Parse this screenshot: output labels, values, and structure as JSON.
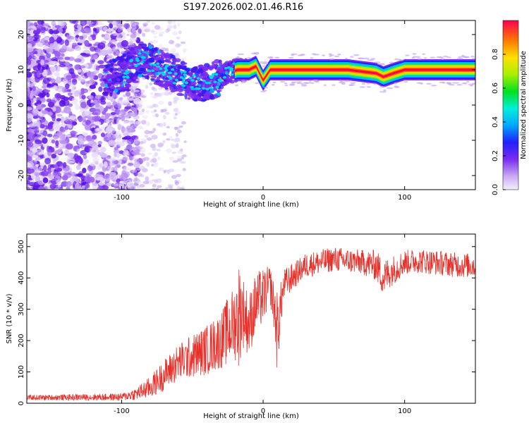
{
  "title": "S197.2026.002.01.46.R16",
  "chart_data": [
    {
      "type": "heatmap",
      "xlabel": "Height of straight line (km)",
      "ylabel": "Frequency (Hz)",
      "xlim": [
        -167,
        150
      ],
      "ylim": [
        -24,
        24
      ],
      "xticks": [
        -100,
        0,
        100
      ],
      "yticks": [
        -20,
        -10,
        0,
        10,
        20
      ],
      "colorbar": {
        "label": "Normalized spectral amplitude",
        "range": [
          0,
          1
        ],
        "ticks": [
          0.0,
          0.2,
          0.4,
          0.6,
          0.8
        ],
        "tick_labels": [
          "0.0",
          "0.2",
          "0.4",
          "0.6",
          "0.8"
        ]
      },
      "ridge_frequency_hz": [
        [
          -105,
          8
        ],
        [
          -95,
          10
        ],
        [
          -85,
          13
        ],
        [
          -75,
          11
        ],
        [
          -65,
          9
        ],
        [
          -55,
          7
        ],
        [
          -45,
          6
        ],
        [
          -35,
          7
        ],
        [
          -25,
          9
        ],
        [
          -18,
          10
        ],
        [
          -10,
          10
        ],
        [
          -5,
          11
        ],
        [
          0,
          7
        ],
        [
          5,
          10
        ],
        [
          20,
          10
        ],
        [
          60,
          10
        ],
        [
          80,
          9
        ],
        [
          85,
          8
        ],
        [
          92,
          9
        ],
        [
          100,
          10
        ],
        [
          150,
          10
        ]
      ]
    },
    {
      "type": "line",
      "xlabel": "Height of straight line (km)",
      "ylabel": "SNR (10 * v/v)",
      "xlim": [
        -167,
        150
      ],
      "ylim": [
        0,
        540
      ],
      "xticks": [
        -100,
        0,
        100
      ],
      "yticks": [
        0,
        100,
        200,
        300,
        400,
        500
      ],
      "line_color": "#e8302a",
      "envelope": {
        "x": [
          -167,
          -100,
          -90,
          -80,
          -70,
          -60,
          -50,
          -40,
          -30,
          -25,
          -20,
          -17,
          -15,
          -10,
          -5,
          0,
          5,
          8,
          10,
          12,
          15,
          20,
          25,
          30,
          40,
          50,
          60,
          70,
          80,
          85,
          90,
          100,
          110,
          120,
          130,
          140,
          150
        ],
        "mean": [
          18,
          20,
          30,
          50,
          90,
          130,
          150,
          170,
          200,
          230,
          260,
          280,
          300,
          250,
          320,
          340,
          380,
          300,
          220,
          300,
          380,
          400,
          420,
          440,
          450,
          460,
          455,
          450,
          440,
          400,
          420,
          450,
          455,
          450,
          445,
          440,
          440
        ],
        "spread": [
          8,
          12,
          20,
          35,
          50,
          60,
          70,
          80,
          90,
          110,
          120,
          180,
          120,
          100,
          100,
          90,
          60,
          80,
          140,
          80,
          50,
          45,
          40,
          40,
          40,
          40,
          40,
          40,
          50,
          60,
          50,
          40,
          40,
          40,
          40,
          40,
          40
        ]
      }
    }
  ]
}
